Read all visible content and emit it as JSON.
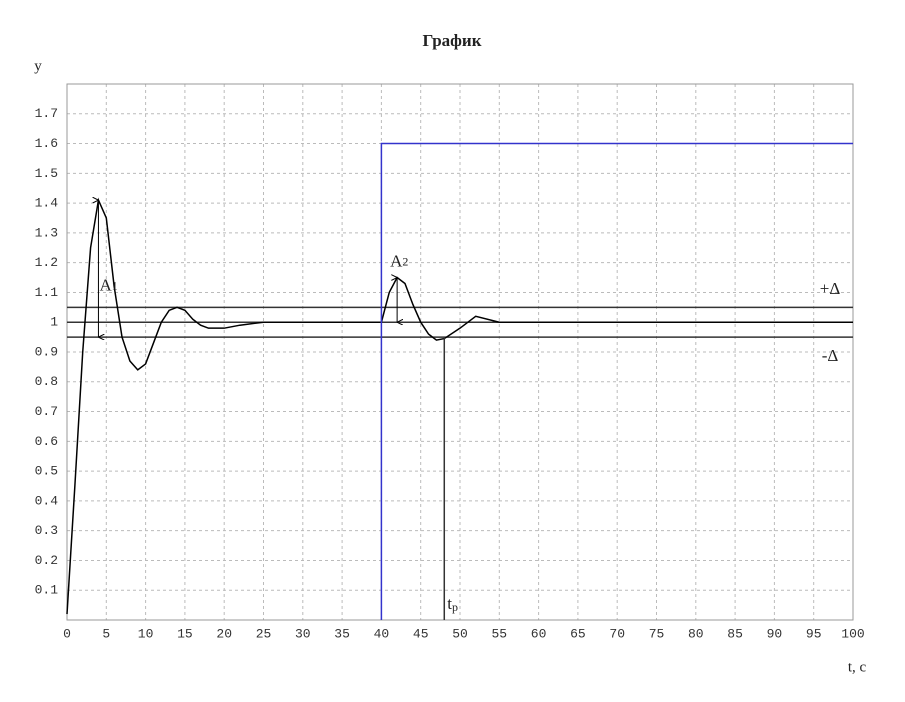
{
  "chart_data": {
    "type": "line",
    "title": "График",
    "ylabel": "y",
    "xlabel": "t, c",
    "xlim": [
      0,
      100
    ],
    "ylim": [
      0,
      1.8
    ],
    "xticks": [
      0,
      5,
      10,
      15,
      20,
      25,
      30,
      35,
      40,
      45,
      50,
      55,
      60,
      65,
      70,
      75,
      80,
      85,
      90,
      95,
      100
    ],
    "yticks": [
      0.1,
      0.2,
      0.3,
      0.4,
      0.5,
      0.6,
      0.7,
      0.8,
      0.9,
      1,
      1.1,
      1.2,
      1.3,
      1.4,
      1.5,
      1.6,
      1.7
    ],
    "grid": true,
    "series": [
      {
        "color": "#000000",
        "x": [
          0,
          1,
          2,
          3,
          4,
          5,
          6,
          7,
          8,
          9,
          10,
          11,
          12,
          13,
          14,
          15,
          16,
          17,
          18,
          20,
          22,
          25,
          30,
          35,
          40,
          41,
          42,
          43,
          44,
          45,
          46,
          47,
          48,
          50,
          52,
          55,
          60,
          70,
          80,
          90,
          100
        ],
        "values": [
          0.02,
          0.45,
          0.9,
          1.25,
          1.41,
          1.35,
          1.12,
          0.95,
          0.87,
          0.84,
          0.86,
          0.93,
          1.0,
          1.04,
          1.05,
          1.04,
          1.01,
          0.99,
          0.98,
          0.98,
          0.99,
          1.0,
          1.0,
          1.0,
          1.0,
          1.1,
          1.15,
          1.13,
          1.06,
          1.0,
          0.96,
          0.94,
          0.945,
          0.98,
          1.02,
          1.0,
          1.0,
          1.0,
          1.0,
          1.0,
          1.0
        ]
      },
      {
        "color": "#3333cc",
        "x": [
          40,
          40,
          100
        ],
        "values": [
          0,
          1.6,
          1.6
        ]
      }
    ],
    "reference_lines": [
      {
        "value": 1.05,
        "label": "+Δ"
      },
      {
        "value": 1
      },
      {
        "value": 0.95,
        "label": "-Δ"
      }
    ],
    "settling_time": {
      "x": 48,
      "to": 0.95,
      "label": "t",
      "sub": "p"
    },
    "annotations": [
      {
        "label": "A",
        "sub": "1",
        "x": 4,
        "from": 1.41,
        "to": 0.95
      },
      {
        "label": "A",
        "sub": "2",
        "x": 42,
        "from": 1.15,
        "to": 1.0
      }
    ]
  }
}
